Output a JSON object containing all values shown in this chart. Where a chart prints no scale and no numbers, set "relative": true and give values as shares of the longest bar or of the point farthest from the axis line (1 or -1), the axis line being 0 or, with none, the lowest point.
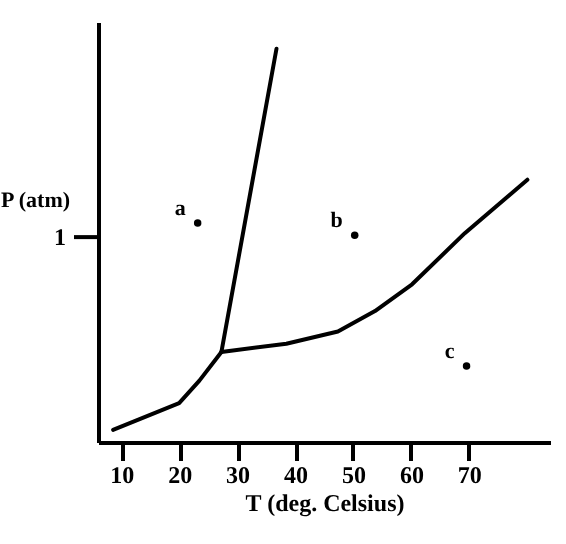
{
  "chart_data": {
    "type": "line",
    "relative": true,
    "xlabel": "T (deg. Celsius)",
    "ylabel": "P  (atm)",
    "xlim": [
      6,
      84
    ],
    "xticks": [
      10,
      20,
      30,
      40,
      50,
      60,
      70
    ],
    "grid": false,
    "marker": "none",
    "line_style": "solid",
    "series": [
      {
        "color": "#000000",
        "x": [
          8.6,
          20,
          23.5,
          27.3
        ],
        "values": [
          0.031,
          0.099,
          0.156,
          0.229
        ]
      },
      {
        "color": "#000000",
        "x": [
          27.3,
          36.8
        ],
        "values": [
          0.229,
          1
        ]
      },
      {
        "color": "#000000",
        "x": [
          27.3,
          38.5,
          47.4,
          53.8,
          60.2,
          69.3,
          80.1
        ],
        "values": [
          0.229,
          0.25,
          0.281,
          0.333,
          0.401,
          0.531,
          0.667
        ]
      },
      {
        "type": "scatter",
        "color": "#000000",
        "marker": "circle",
        "x": [
          23.2,
          50.3,
          69.6
        ],
        "values": [
          0.557,
          0.526,
          0.193
        ]
      }
    ],
    "ref_lines": [
      {
        "axis": "y",
        "value": 0.521,
        "label": "1"
      }
    ],
    "annotations": [
      {
        "text": "a",
        "x": 23.2,
        "y": 0.557
      },
      {
        "text": "b",
        "x": 50.3,
        "y": 0.526
      },
      {
        "text": "c",
        "x": 69.6,
        "y": 0.193
      }
    ]
  }
}
